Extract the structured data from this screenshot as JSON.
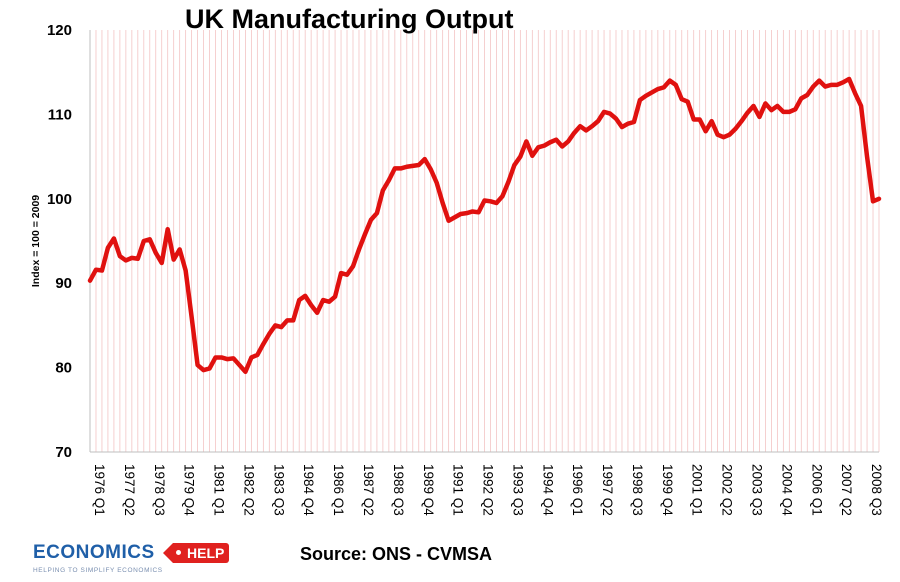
{
  "chart_data": {
    "type": "line",
    "title": "UK Manufacturing Output",
    "ylabel": "Index = 100 = 2009",
    "xlabel": "",
    "ylim": [
      70,
      120
    ],
    "yticks": [
      70,
      80,
      90,
      100,
      110,
      120
    ],
    "grid": "vertical lines per quarter (light red)",
    "legend": "none",
    "line_color": "#e0110f",
    "x_tick_labels": [
      "1976 Q1",
      "1977 Q2",
      "1978 Q3",
      "1979 Q4",
      "1981 Q1",
      "1982 Q2",
      "1983 Q3",
      "1984 Q4",
      "1986 Q1",
      "1987 Q2",
      "1988 Q3",
      "1989 Q4",
      "1991 Q1",
      "1992 Q2",
      "1993 Q3",
      "1994 Q4",
      "1996 Q1",
      "1997 Q2",
      "1998 Q3",
      "1999 Q4",
      "2001 Q1",
      "2002 Q2",
      "2003 Q3",
      "2004 Q4",
      "2006 Q1",
      "2007 Q2",
      "2008 Q3"
    ],
    "x_start": "1976 Q1",
    "series": [
      {
        "values": [
          90.3,
          91.6,
          91.5,
          94.2,
          95.3,
          93.2,
          92.7,
          93.0,
          92.9,
          95.0,
          95.2,
          93.6,
          92.4,
          96.4,
          92.8,
          94.0,
          91.5,
          86.0,
          80.3,
          79.7,
          79.9,
          81.2,
          81.2,
          81.0,
          81.1,
          80.3,
          79.5,
          81.2,
          81.5,
          82.8,
          84.0,
          85.0,
          84.8,
          85.6,
          85.6,
          88.0,
          88.5,
          87.4,
          86.5,
          88.0,
          87.8,
          88.4,
          91.2,
          91.0,
          92.0,
          94.0,
          95.8,
          97.5,
          98.3,
          101.0,
          102.2,
          103.6,
          103.6,
          103.8,
          103.9,
          104.0,
          104.7,
          103.5,
          101.9,
          99.5,
          97.4,
          97.8,
          98.2,
          98.3,
          98.5,
          98.4,
          99.8,
          99.7,
          99.5,
          100.3,
          102.0,
          104.0,
          105.0,
          106.8,
          105.1,
          106.1,
          106.3,
          106.7,
          107.0,
          106.2,
          106.8,
          107.8,
          108.6,
          108.1,
          108.6,
          109.2,
          110.3,
          110.1,
          109.5,
          108.5,
          108.9,
          109.1,
          111.7,
          112.2,
          112.6,
          113.0,
          113.2,
          114.0,
          113.5,
          111.8,
          111.5,
          109.4,
          109.4,
          108.0,
          109.2,
          107.6,
          107.3,
          107.6,
          108.3,
          109.2,
          110.2,
          111.0,
          109.7,
          111.3,
          110.5,
          111.0,
          110.3,
          110.3,
          110.6,
          111.9,
          112.3,
          113.3,
          114.0,
          113.3,
          113.5,
          113.5,
          113.8,
          114.2,
          112.5,
          111.0,
          105.0,
          99.7,
          100.0
        ]
      }
    ]
  },
  "footer": {
    "source": "Source: ONS - CVMSA",
    "logo_word": "ECONOMICS",
    "logo_badge": "HELP",
    "logo_tagline": "HELPING TO SIMPLIFY ECONOMICS"
  }
}
